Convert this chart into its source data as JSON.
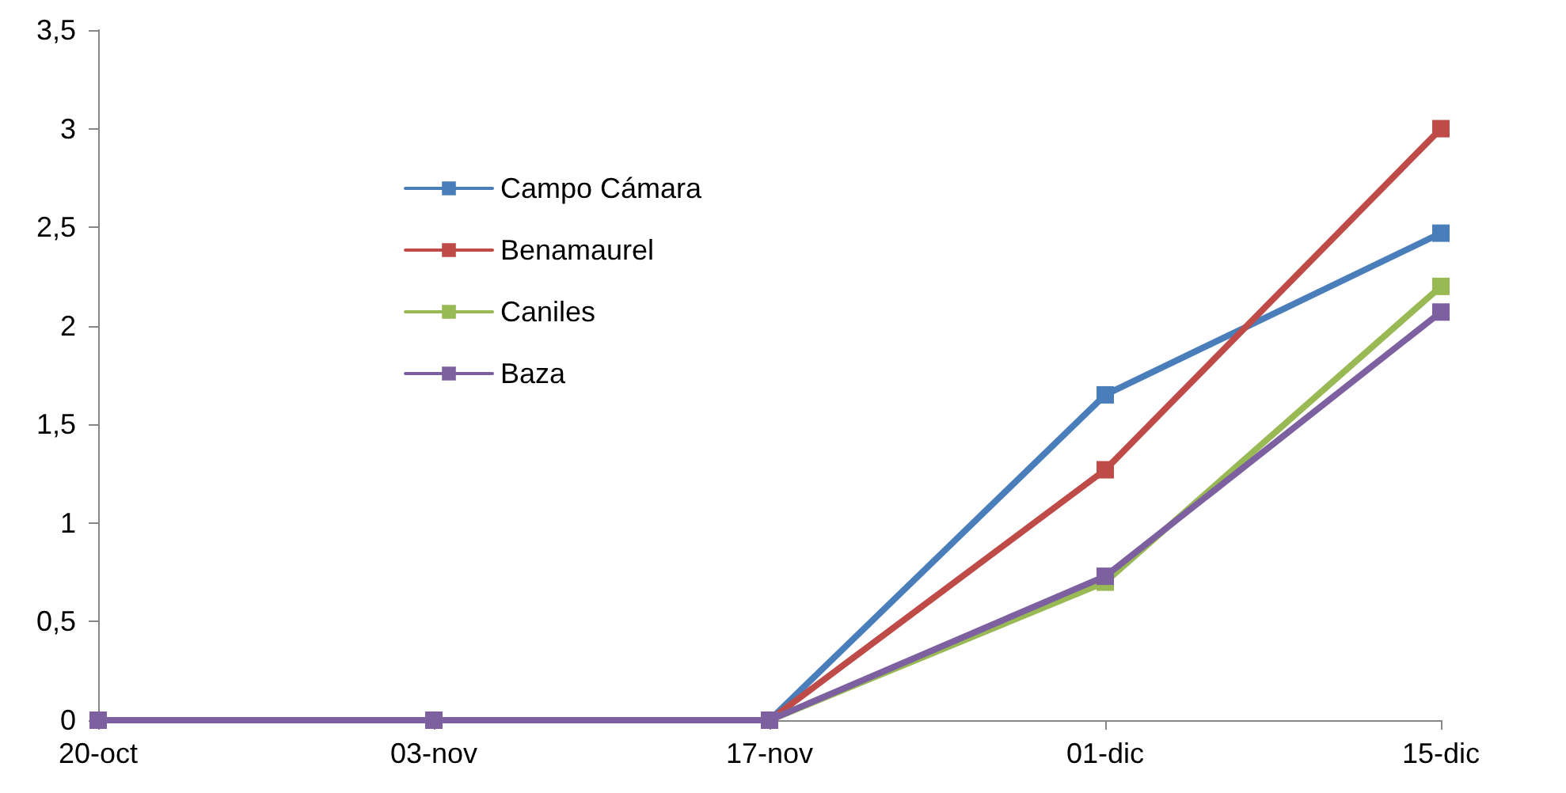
{
  "chart_data": {
    "type": "line",
    "categories": [
      "20-oct",
      "03-nov",
      "17-nov",
      "01-dic",
      "15-dic"
    ],
    "series": [
      {
        "name": "Campo Cámara",
        "color": "#4a7ebb",
        "values": [
          0,
          0,
          0,
          1.65,
          2.47
        ]
      },
      {
        "name": "Benamaurel",
        "color": "#be4b48",
        "values": [
          0,
          0,
          0,
          1.27,
          3.0
        ]
      },
      {
        "name": "Caniles",
        "color": "#98b954",
        "values": [
          0,
          0,
          0,
          0.7,
          2.2
        ]
      },
      {
        "name": "Baza",
        "color": "#7d60a0",
        "values": [
          0,
          0,
          0,
          0.73,
          2.07
        ]
      }
    ],
    "ylim": [
      0,
      3.5
    ],
    "yticks": [
      0,
      {
        "value": 0.5,
        "label": "0,5"
      },
      1,
      {
        "value": 1.5,
        "label": "1,5"
      },
      2,
      {
        "value": 2.5,
        "label": "2,5"
      },
      3,
      {
        "value": 3.5,
        "label": "3,5"
      }
    ],
    "grid": false,
    "legend": "top left",
    "marker": "square",
    "line_style": "solid"
  }
}
